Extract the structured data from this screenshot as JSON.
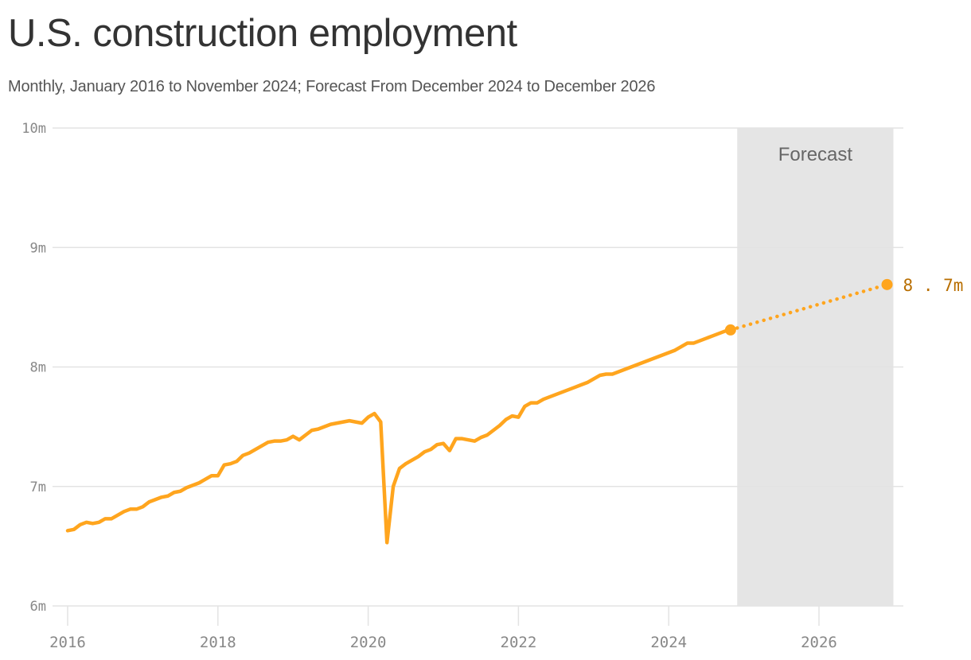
{
  "title": "U.S. construction employment",
  "subtitle": "Monthly, January 2016 to November 2024; Forecast From December 2024 to December 2026",
  "forecast_label": "Forecast",
  "end_label": "8.7m",
  "colors": {
    "line": "#FFA51E",
    "end_label": "#B86E00",
    "forecast_band": "#E5E5E5",
    "grid": "#E3E3E3",
    "axis_text": "#888888",
    "title": "#333333",
    "subtitle": "#555555"
  },
  "chart_data": {
    "type": "line",
    "title": "U.S. construction employment",
    "subtitle": "Monthly, January 2016 to November 2024; Forecast From December 2024 to December 2026",
    "xlabel": "",
    "ylabel": "",
    "unit": "millions of jobs",
    "ylim": [
      6,
      10
    ],
    "xlim": [
      "2016-01",
      "2027-01"
    ],
    "yticks": [
      {
        "value": 6,
        "label": "6m"
      },
      {
        "value": 7,
        "label": "7m"
      },
      {
        "value": 8,
        "label": "8m"
      },
      {
        "value": 9,
        "label": "9m"
      },
      {
        "value": 10,
        "label": "10m"
      }
    ],
    "xticks": [
      "2016",
      "2018",
      "2020",
      "2022",
      "2024",
      "2026"
    ],
    "grid": "horizontal",
    "legend": null,
    "annotations": [
      {
        "type": "shaded_region",
        "label": "Forecast",
        "from": "2024-12",
        "to": "2026-12"
      },
      {
        "type": "end_label",
        "label": "8.7m",
        "at": "2026-12",
        "value": 8.69
      }
    ],
    "series": [
      {
        "name": "Actual",
        "style": "solid",
        "start": "2016-01",
        "frequency": "monthly",
        "values": [
          6.63,
          6.64,
          6.68,
          6.7,
          6.69,
          6.7,
          6.73,
          6.73,
          6.76,
          6.79,
          6.81,
          6.81,
          6.83,
          6.87,
          6.89,
          6.91,
          6.92,
          6.95,
          6.96,
          6.99,
          7.01,
          7.03,
          7.06,
          7.09,
          7.09,
          7.18,
          7.19,
          7.21,
          7.26,
          7.28,
          7.31,
          7.34,
          7.37,
          7.38,
          7.38,
          7.39,
          7.42,
          7.39,
          7.43,
          7.47,
          7.48,
          7.5,
          7.52,
          7.53,
          7.54,
          7.55,
          7.54,
          7.53,
          7.58,
          7.61,
          7.54,
          6.53,
          7.0,
          7.15,
          7.19,
          7.22,
          7.25,
          7.29,
          7.31,
          7.35,
          7.36,
          7.3,
          7.4,
          7.4,
          7.39,
          7.38,
          7.41,
          7.43,
          7.47,
          7.51,
          7.56,
          7.59,
          7.58,
          7.67,
          7.7,
          7.7,
          7.73,
          7.75,
          7.77,
          7.79,
          7.81,
          7.83,
          7.85,
          7.87,
          7.9,
          7.93,
          7.94,
          7.94,
          7.96,
          7.98,
          8.0,
          8.02,
          8.04,
          8.06,
          8.08,
          8.1,
          8.12,
          8.14,
          8.17,
          8.2,
          8.2,
          8.22,
          8.24,
          8.26,
          8.28,
          8.3,
          8.31
        ]
      },
      {
        "name": "Forecast",
        "style": "dotted",
        "points": [
          {
            "x": "2024-11",
            "y": 8.31
          },
          {
            "x": "2026-12",
            "y": 8.69
          }
        ]
      }
    ]
  }
}
